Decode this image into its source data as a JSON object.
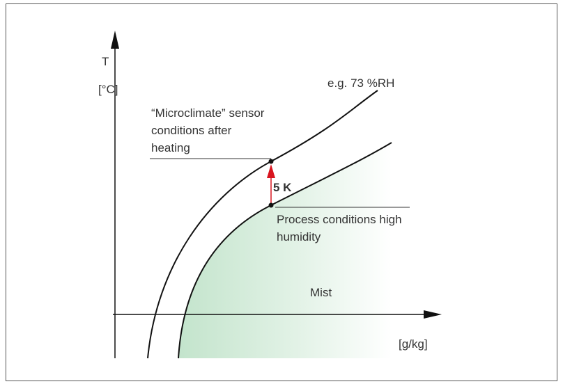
{
  "axes": {
    "y_label": "T",
    "y_unit": "[°C]",
    "x_unit": "[g/kg]"
  },
  "curves": {
    "upper_label": "e.g. 73 %RH"
  },
  "annotations": {
    "microclimate": [
      "“Microclimate” sensor",
      "conditions after",
      "heating"
    ],
    "delta": "5 K",
    "process": [
      "Process conditions high",
      "humidity"
    ],
    "region": "Mist"
  }
}
